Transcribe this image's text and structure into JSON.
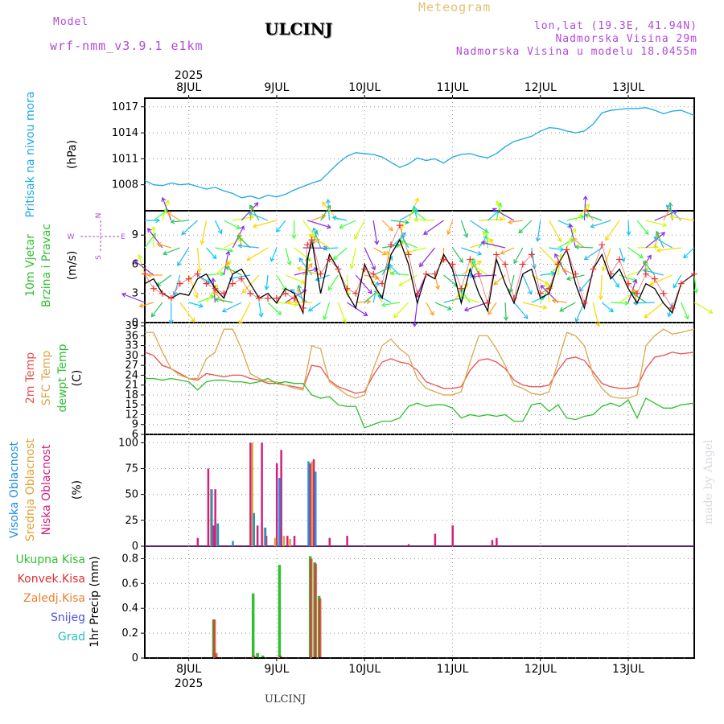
{
  "header": {
    "model_label": "Model",
    "model_name": "wrf-nmm_v3.9.1 e1km",
    "title": "ULCINJ",
    "meteogram": "Meteogram",
    "lonlat": "lon,lat (19.3E, 41.94N)",
    "altitude": "Nadmorska Visina 29m",
    "model_altitude": "Nadmorska Visina u modelu 18.0455m",
    "year_top": "2025",
    "year_bottom": "2025",
    "footer_city": "ULCINJ",
    "watermark": "made by Angel"
  },
  "colors": {
    "pressure": "#1ea8e8",
    "wind_speed": "#000000",
    "gust": "#e83030",
    "t2m": "#e85050",
    "sfc": "#d8a850",
    "dewpt": "#30c030",
    "high_cloud": "#2090e0",
    "mid_cloud": "#e0a030",
    "low_cloud": "#d02080",
    "total_rain": "#30c030",
    "conv_rain": "#e03030",
    "frz_rain": "#f08030",
    "snow": "#5050e0",
    "hail": "#20c0c0"
  },
  "chart_data": [
    {
      "panel": "pressure",
      "type": "line",
      "ylabel_side": "Pritisak na nivou mora",
      "unit": "(hPa)",
      "x_ticks": [
        "8JUL",
        "9JUL",
        "10JUL",
        "11JUL",
        "12JUL",
        "13JUL"
      ],
      "y_ticks": [
        1008,
        1011,
        1014,
        1017
      ],
      "ylim": [
        1005,
        1018
      ],
      "xlim": [
        -0.5,
        5.75
      ],
      "grid": true,
      "series": [
        {
          "x": [
            -0.5,
            -0.4,
            -0.3,
            -0.2,
            -0.1,
            0,
            0.1,
            0.2,
            0.3,
            0.4,
            0.5,
            0.6,
            0.7,
            0.8,
            0.9,
            1.0,
            1.1,
            1.2,
            1.3,
            1.4,
            1.5,
            1.6,
            1.7,
            1.8,
            1.9,
            2.0,
            2.1,
            2.2,
            2.3,
            2.4,
            2.5,
            2.6,
            2.7,
            2.8,
            2.9,
            3.0,
            3.1,
            3.2,
            3.3,
            3.4,
            3.5,
            3.6,
            3.7,
            3.8,
            3.9,
            4.0,
            4.1,
            4.2,
            4.3,
            4.4,
            4.5,
            4.6,
            4.7,
            4.8,
            4.9,
            5.0,
            5.1,
            5.2,
            5.3,
            5.4,
            5.5,
            5.6,
            5.75
          ],
          "values": [
            1008.5,
            1008,
            1007.9,
            1008.2,
            1008,
            1008.1,
            1007.8,
            1007.5,
            1007.7,
            1007.3,
            1007.0,
            1006.5,
            1006.7,
            1006.4,
            1006.8,
            1006.6,
            1006.9,
            1007.4,
            1007.8,
            1008.2,
            1008.5,
            1009.5,
            1010.5,
            1011.3,
            1011.7,
            1011.6,
            1011.5,
            1011.2,
            1010.6,
            1010.0,
            1010.4,
            1011.1,
            1010.8,
            1011.0,
            1010.5,
            1011.2,
            1011.5,
            1011.6,
            1011.3,
            1011.1,
            1011.6,
            1012.4,
            1013.0,
            1013.3,
            1013.6,
            1014.2,
            1014.6,
            1014.5,
            1014.2,
            1014.0,
            1014.2,
            1015.0,
            1016.3,
            1016.6,
            1016.7,
            1016.8,
            1016.8,
            1016.9,
            1016.6,
            1016.2,
            1016.5,
            1016.6,
            1016.0
          ]
        }
      ]
    },
    {
      "panel": "wind",
      "type": "line",
      "ylabel_side": [
        "10m Vjetar",
        "Brzina i Pravac"
      ],
      "unit": "(m/s)",
      "compass": [
        "N",
        "W",
        "E",
        "S"
      ],
      "y_ticks": [
        0,
        3,
        6,
        9
      ],
      "ylim": [
        0,
        11.5
      ],
      "xlim": [
        -0.5,
        5.75
      ],
      "grid": true,
      "series": [
        {
          "role": "speed",
          "x": [
            -0.5,
            -0.4,
            -0.3,
            -0.2,
            -0.1,
            0,
            0.1,
            0.2,
            0.3,
            0.4,
            0.5,
            0.6,
            0.7,
            0.8,
            0.9,
            1.0,
            1.1,
            1.2,
            1.3,
            1.35,
            1.4,
            1.5,
            1.6,
            1.7,
            1.8,
            1.9,
            2.0,
            2.1,
            2.2,
            2.3,
            2.4,
            2.5,
            2.6,
            2.7,
            2.8,
            2.9,
            3.0,
            3.1,
            3.2,
            3.3,
            3.4,
            3.5,
            3.6,
            3.7,
            3.8,
            3.9,
            4.0,
            4.1,
            4.2,
            4.3,
            4.4,
            4.5,
            4.6,
            4.7,
            4.8,
            4.9,
            5.0,
            5.1,
            5.2,
            5.3,
            5.4,
            5.5,
            5.6,
            5.75
          ],
          "values": [
            4,
            4.5,
            3,
            2.5,
            3,
            2.8,
            4.5,
            5,
            3.5,
            2.5,
            5,
            5.5,
            4,
            2.5,
            3,
            2,
            3.5,
            3,
            1,
            6.5,
            8.5,
            3,
            7,
            5.5,
            3,
            1.5,
            6,
            4,
            2.5,
            7,
            8.5,
            6,
            2,
            5,
            4.5,
            7,
            5.5,
            2,
            5.5,
            3,
            1.2,
            6.5,
            4,
            2,
            5,
            5.5,
            2.5,
            3,
            6,
            7.5,
            4,
            1.5,
            5.5,
            7,
            4.5,
            5.5,
            3.5,
            2,
            4,
            3.5,
            2,
            1,
            4,
            5
          ]
        },
        {
          "role": "gust",
          "x": [
            -0.5,
            -0.4,
            -0.3,
            -0.2,
            -0.1,
            0,
            0.1,
            0.2,
            0.3,
            0.4,
            0.5,
            0.6,
            0.7,
            0.8,
            0.9,
            1.0,
            1.1,
            1.2,
            1.3,
            1.35,
            1.4,
            1.5,
            1.6,
            1.7,
            1.8,
            1.9,
            2.0,
            2.1,
            2.2,
            2.3,
            2.4,
            2.5,
            2.6,
            2.7,
            2.8,
            2.9,
            3.0,
            3.1,
            3.2,
            3.3,
            3.4,
            3.5,
            3.6,
            3.7,
            3.8,
            3.9,
            4.0,
            4.1,
            4.2,
            4.3,
            4.4,
            4.5,
            4.6,
            4.7,
            4.8,
            4.9,
            5.0,
            5.1,
            5.2,
            5.3,
            5.4,
            5.5,
            5.6,
            5.75
          ],
          "values": [
            5,
            3.5,
            3,
            2.5,
            4,
            4.5,
            5,
            4,
            3.5,
            3,
            4,
            4.5,
            3,
            2.5,
            2.5,
            2.5,
            3,
            2.5,
            1.5,
            8,
            8.5,
            5,
            6.5,
            5.5,
            3.5,
            3,
            5.5,
            5,
            4,
            8,
            10,
            7,
            3,
            5,
            5,
            6.5,
            6,
            3.5,
            6.5,
            5,
            2,
            7,
            6,
            2.5,
            6,
            7,
            3,
            3.5,
            6,
            7.5,
            5,
            2,
            5.5,
            8,
            5,
            6.5,
            4,
            3,
            5,
            4.5,
            3,
            1.5,
            4,
            5
          ]
        }
      ]
    },
    {
      "panel": "temperature",
      "type": "line",
      "ylabel_side": [
        "2m Temp",
        "SFC Temp",
        "dewpt Temp"
      ],
      "unit": "(C)",
      "y_ticks": [
        6,
        9,
        12,
        15,
        18,
        21,
        24,
        27,
        30,
        33,
        36,
        39
      ],
      "ylim": [
        6,
        40
      ],
      "xlim": [
        -0.5,
        5.75
      ],
      "grid": true,
      "series": [
        {
          "name": "2m Temp",
          "x": [
            -0.5,
            -0.4,
            -0.3,
            -0.2,
            -0.1,
            0,
            0.1,
            0.2,
            0.3,
            0.4,
            0.5,
            0.6,
            0.7,
            0.8,
            0.9,
            1.0,
            1.1,
            1.2,
            1.3,
            1.4,
            1.5,
            1.6,
            1.7,
            1.8,
            1.9,
            2.0,
            2.1,
            2.2,
            2.3,
            2.4,
            2.5,
            2.6,
            2.7,
            2.8,
            2.9,
            3.0,
            3.1,
            3.2,
            3.3,
            3.4,
            3.5,
            3.6,
            3.7,
            3.8,
            3.9,
            4.0,
            4.1,
            4.2,
            4.3,
            4.4,
            4.5,
            4.6,
            4.7,
            4.8,
            4.9,
            5.0,
            5.1,
            5.2,
            5.3,
            5.4,
            5.5,
            5.6,
            5.75
          ],
          "values": [
            31,
            30,
            27,
            26,
            24.5,
            23,
            22.5,
            24.5,
            24,
            23.5,
            24,
            24,
            23,
            22.5,
            21.5,
            21.5,
            21,
            20.5,
            20,
            27,
            26.5,
            22.5,
            20.5,
            19.5,
            18.5,
            19,
            24,
            28,
            29,
            28,
            27.5,
            25.5,
            22,
            21,
            20,
            20,
            20.5,
            25.5,
            28.5,
            29,
            28,
            26,
            22.5,
            21,
            20.5,
            20.5,
            21,
            25.5,
            29,
            29.5,
            28.5,
            25,
            21.5,
            20.5,
            20,
            20,
            20.5,
            26,
            29.5,
            30,
            31,
            30.5,
            31
          ]
        },
        {
          "name": "SFC Temp",
          "x": [
            -0.5,
            -0.4,
            -0.3,
            -0.2,
            -0.1,
            0,
            0.1,
            0.2,
            0.3,
            0.4,
            0.5,
            0.6,
            0.7,
            0.8,
            0.9,
            1.0,
            1.1,
            1.2,
            1.3,
            1.4,
            1.5,
            1.6,
            1.7,
            1.8,
            1.9,
            2.0,
            2.1,
            2.2,
            2.3,
            2.4,
            2.5,
            2.6,
            2.7,
            2.8,
            2.9,
            3.0,
            3.1,
            3.2,
            3.3,
            3.4,
            3.5,
            3.6,
            3.7,
            3.8,
            3.9,
            4.0,
            4.1,
            4.2,
            4.3,
            4.4,
            4.5,
            4.6,
            4.7,
            4.8,
            4.9,
            5.0,
            5.1,
            5.2,
            5.3,
            5.4,
            5.5,
            5.6,
            5.75
          ],
          "values": [
            37,
            37,
            31,
            26,
            24,
            23,
            23,
            29,
            31,
            38,
            38,
            32,
            24.5,
            23,
            22,
            22,
            21,
            20,
            19.5,
            33,
            32,
            22,
            20,
            18,
            17,
            18,
            26,
            33,
            35,
            32,
            30,
            23,
            20,
            19,
            18,
            18,
            19,
            28,
            36,
            36,
            32,
            27,
            21,
            20,
            18.5,
            18,
            19,
            28,
            37,
            36,
            33,
            24,
            20,
            17.5,
            17,
            17,
            18,
            33,
            36,
            38,
            36.5,
            37,
            38
          ]
        },
        {
          "name": "dewpt Temp",
          "x": [
            -0.5,
            -0.4,
            -0.3,
            -0.2,
            -0.1,
            0,
            0.1,
            0.2,
            0.3,
            0.4,
            0.5,
            0.6,
            0.7,
            0.8,
            0.9,
            1.0,
            1.1,
            1.2,
            1.3,
            1.4,
            1.5,
            1.6,
            1.7,
            1.8,
            1.9,
            2.0,
            2.1,
            2.2,
            2.3,
            2.4,
            2.5,
            2.6,
            2.7,
            2.8,
            2.9,
            3.0,
            3.1,
            3.2,
            3.3,
            3.4,
            3.5,
            3.6,
            3.7,
            3.8,
            3.9,
            4.0,
            4.1,
            4.2,
            4.3,
            4.4,
            4.5,
            4.6,
            4.7,
            4.8,
            4.9,
            5.0,
            5.1,
            5.2,
            5.3,
            5.4,
            5.5,
            5.6,
            5.75
          ],
          "values": [
            23,
            23,
            22.5,
            23,
            22.5,
            22,
            19.5,
            22,
            22.5,
            22.5,
            22,
            22,
            21.5,
            22,
            23,
            21.5,
            22,
            21.5,
            21.5,
            18,
            17,
            17.5,
            15,
            14.5,
            14.5,
            8,
            9,
            10,
            10,
            11,
            14.5,
            15.5,
            14.5,
            15,
            15,
            14,
            11,
            12,
            11.5,
            12,
            11.5,
            12,
            10,
            10,
            15,
            15.5,
            13,
            15,
            11,
            10.5,
            11.5,
            12,
            14.5,
            15.5,
            14.5,
            16.5,
            11,
            17,
            15.5,
            14,
            14,
            15,
            15.5
          ]
        }
      ]
    },
    {
      "panel": "clouds",
      "type": "bar",
      "ylabel_side": [
        "Visoka Oblacnost",
        "Srednja Oblacnost",
        "Niska Oblacnost"
      ],
      "unit": "(%)",
      "y_ticks": [
        0,
        25,
        50,
        75,
        100
      ],
      "ylim": [
        0,
        108
      ],
      "xlim": [
        -0.5,
        5.75
      ],
      "grid": true,
      "series": [
        {
          "name": "Niska Oblacnost",
          "x": [
            0.1,
            0.22,
            0.28,
            0.3,
            0.7,
            0.78,
            0.83,
            0.88,
            1.0,
            1.05,
            1.12,
            1.2,
            1.38,
            1.42,
            1.6,
            1.8,
            2.5,
            2.8,
            3.0,
            3.45,
            3.5
          ],
          "values": [
            8,
            75,
            20,
            55,
            100,
            20,
            100,
            10,
            80,
            93,
            10,
            10,
            80,
            84,
            8,
            10,
            2,
            12,
            20,
            6,
            8
          ]
        },
        {
          "name": "Srednja Oblacnost",
          "x": [
            0.25,
            0.32,
            0.72,
            0.86,
            0.98,
            1.08,
            1.15,
            1.4
          ],
          "values": [
            55,
            22,
            100,
            18,
            8,
            10,
            7,
            82
          ]
        },
        {
          "name": "Visoka Oblacnost",
          "x": [
            0.26,
            0.33,
            0.5,
            0.74,
            0.87,
            1.03,
            1.36,
            1.44
          ],
          "values": [
            55,
            22,
            5,
            32,
            18,
            66,
            82,
            72
          ]
        }
      ]
    },
    {
      "panel": "precip",
      "type": "bar",
      "ylabel_side": [
        "Ukupna Kisa",
        "Konvek.Kisa",
        "Zaledj.Kisa",
        "Snijeg",
        "Grad"
      ],
      "unit": "1hr Precip (mm)",
      "y_ticks": [
        0,
        0.2,
        0.4,
        0.6,
        0.8
      ],
      "ylim": [
        0,
        0.9
      ],
      "xlim": [
        -0.5,
        5.75
      ],
      "grid": true,
      "series": [
        {
          "name": "Ukupna Kisa",
          "x": [
            0.28,
            0.73,
            0.78,
            0.84,
            1.03,
            1.38,
            1.43,
            1.48
          ],
          "values": [
            0.31,
            0.52,
            0.04,
            0.02,
            0.75,
            0.82,
            0.77,
            0.5
          ]
        },
        {
          "name": "Konvek.Kisa",
          "x": [
            0.29,
            0.31,
            0.74,
            1.04,
            1.39,
            1.44,
            1.49
          ],
          "values": [
            0.31,
            0.04,
            0.02,
            0.02,
            0.8,
            0.76,
            0.48
          ]
        },
        {
          "name": "Zaledj.Kisa",
          "x": [],
          "values": []
        },
        {
          "name": "Snijeg",
          "x": [],
          "values": []
        },
        {
          "name": "Grad",
          "x": [],
          "values": []
        }
      ]
    }
  ]
}
